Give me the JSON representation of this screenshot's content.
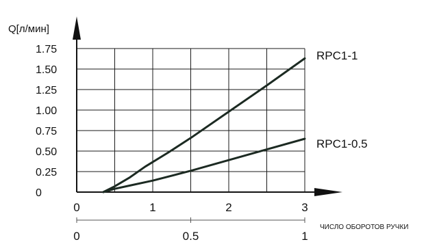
{
  "chart_data": {
    "type": "line",
    "ylabel": "Q[л/мин]",
    "xlabel": "ЧИСЛО ОБОРОТОВ РУЧКИ",
    "x_ticks": [
      "0",
      "1",
      "2",
      "3"
    ],
    "x2_ticks": [
      "0",
      "0.5",
      "1"
    ],
    "y_ticks": [
      "0",
      "0.25",
      "0.50",
      "0.75",
      "1.00",
      "1.25",
      "1.50",
      "1.75"
    ],
    "xlim": [
      0,
      3
    ],
    "ylim": [
      0,
      1.75
    ],
    "grid": true,
    "series": [
      {
        "name": "RPC1-1",
        "x": [
          0.35,
          0.5,
          0.7,
          0.9,
          1.2,
          1.5,
          2.0,
          2.5,
          3.0
        ],
        "y": [
          0,
          0.07,
          0.18,
          0.31,
          0.48,
          0.66,
          0.98,
          1.3,
          1.63
        ]
      },
      {
        "name": "RPC1-0.5",
        "x": [
          0.35,
          0.5,
          0.7,
          1.0,
          1.5,
          2.0,
          2.5,
          3.0
        ],
        "y": [
          0,
          0.04,
          0.08,
          0.14,
          0.26,
          0.39,
          0.52,
          0.65
        ]
      }
    ]
  },
  "colors": {
    "line": "#1c2a22",
    "grid": "#1a1a1a",
    "text": "#111111"
  }
}
